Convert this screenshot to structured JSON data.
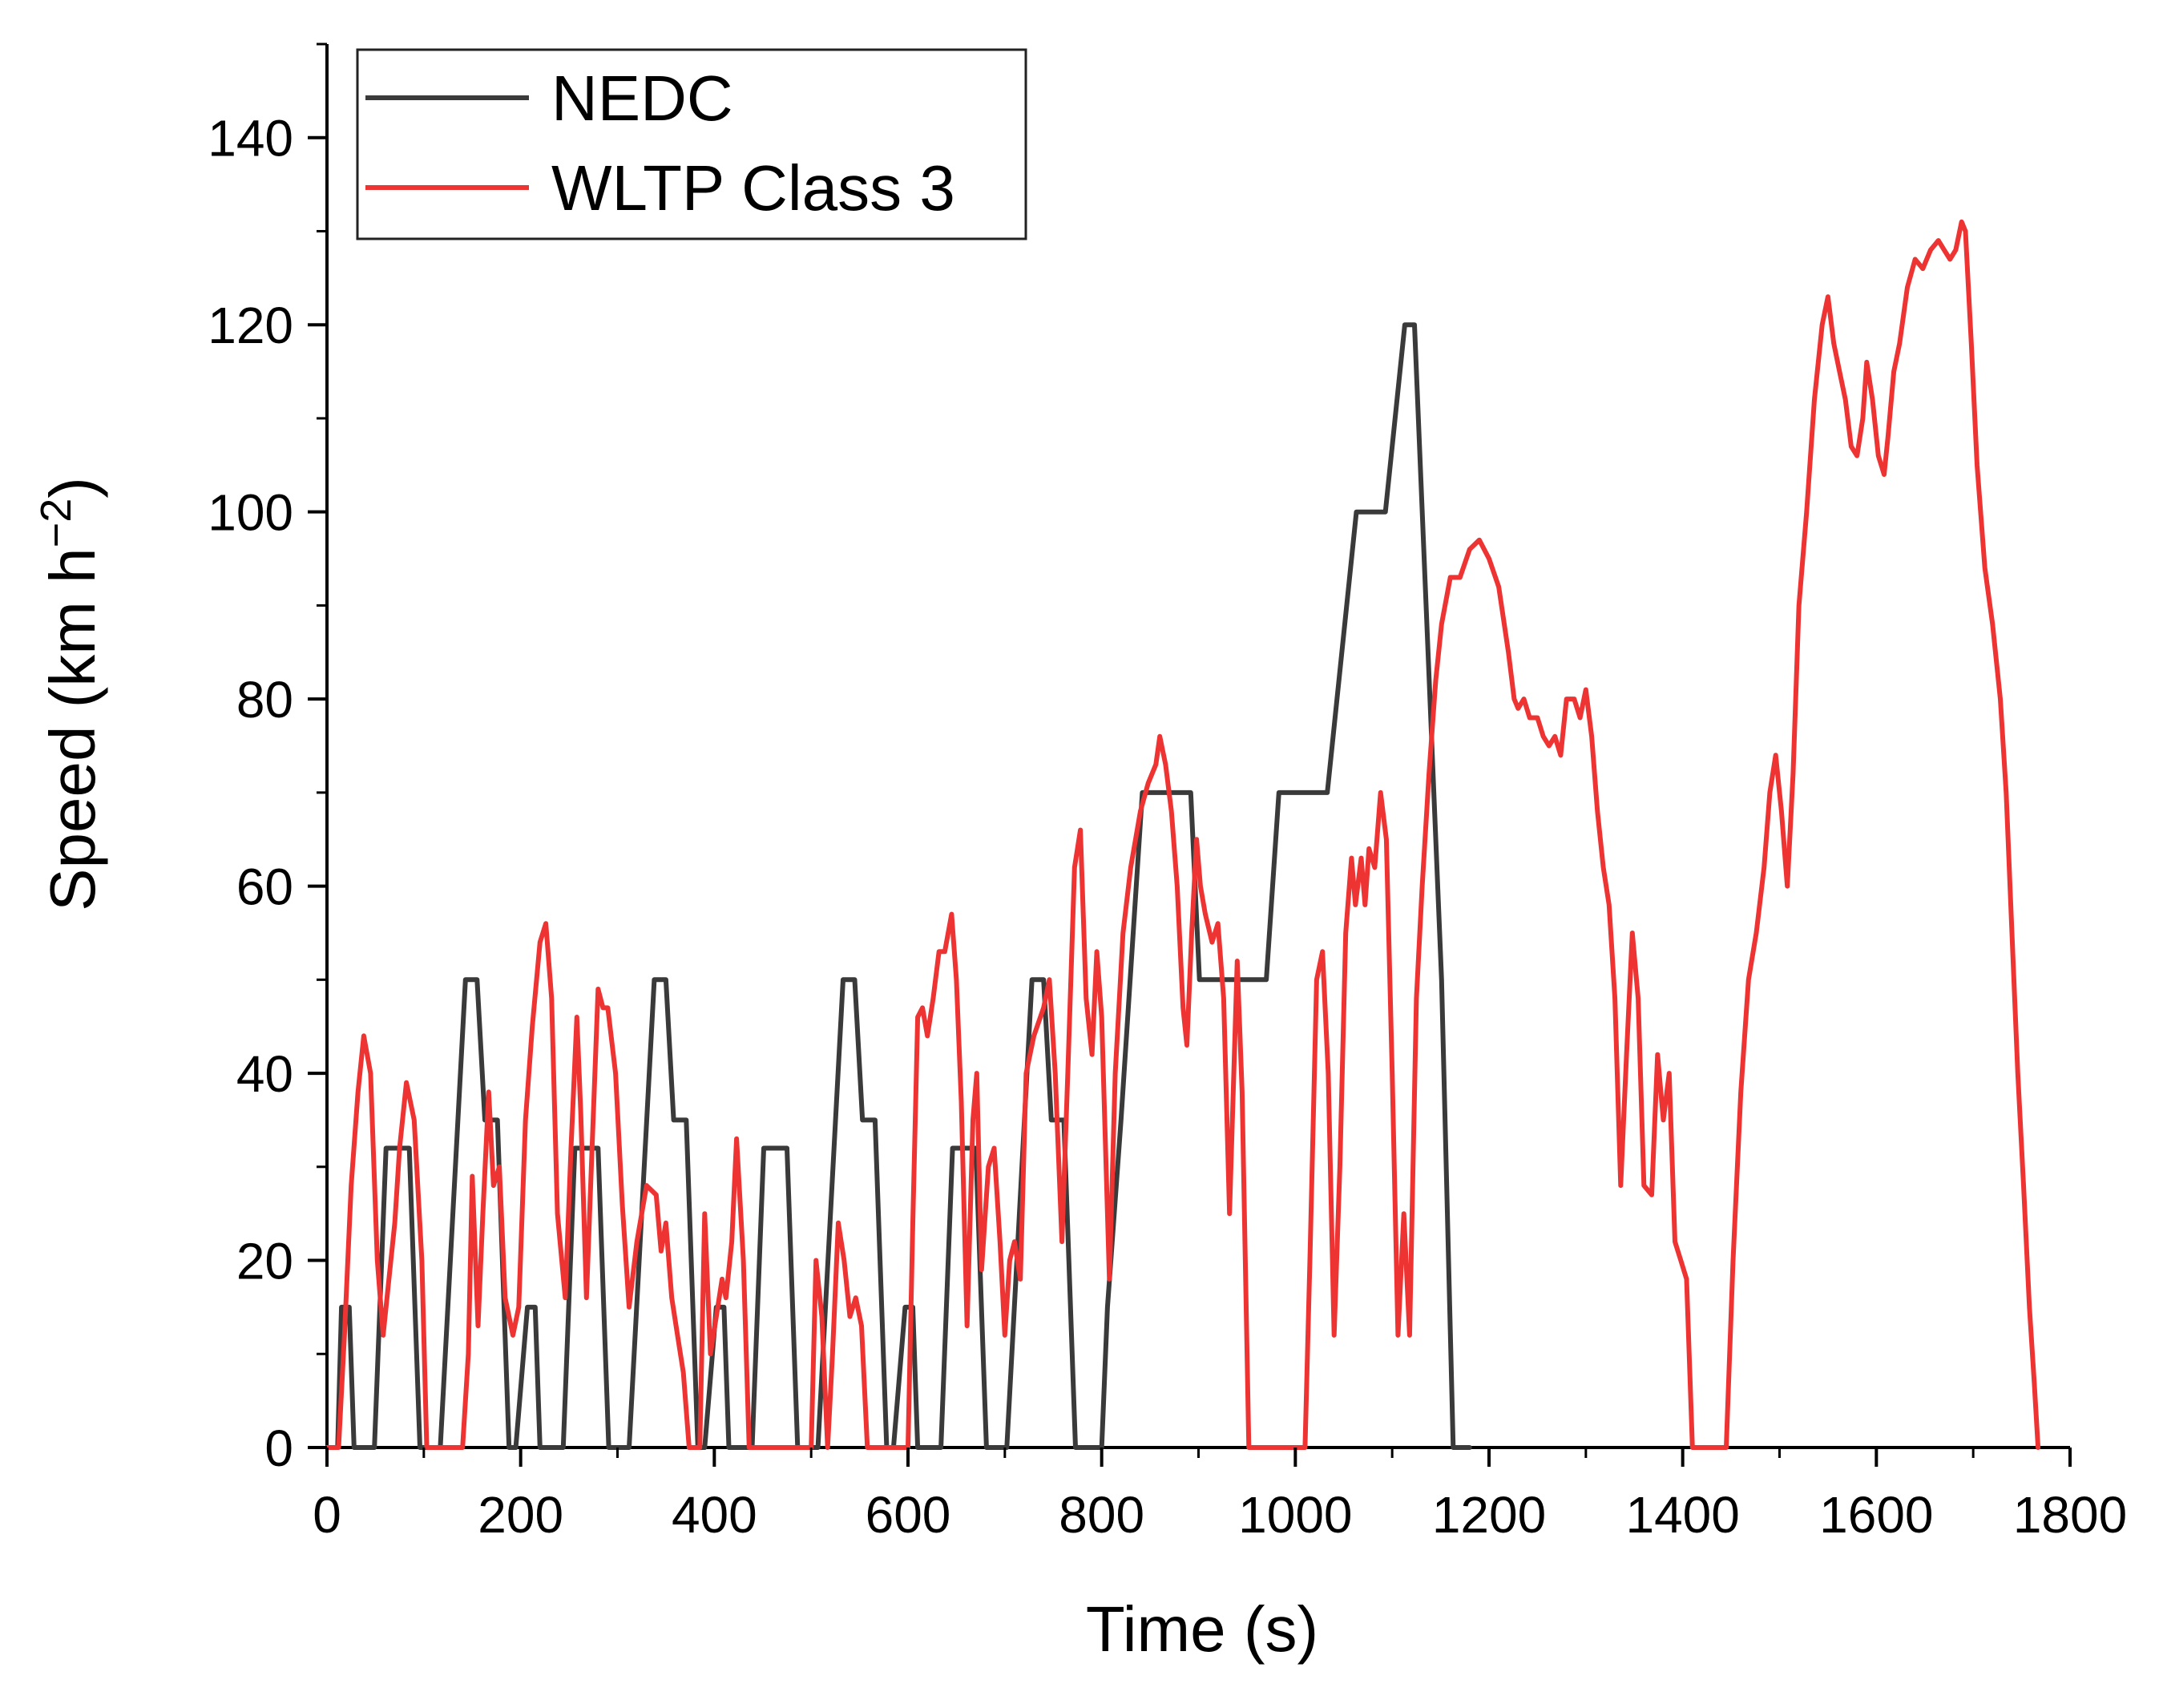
{
  "chart_data": {
    "type": "line",
    "title": "",
    "xlabel": "Time (s)",
    "ylabel_main": "Speed (km h",
    "ylabel_sup": "−2",
    "ylabel_close": ")",
    "xlim": [
      0,
      1800
    ],
    "ylim": [
      0,
      150
    ],
    "x_ticks": [
      0,
      200,
      400,
      600,
      800,
      1000,
      1200,
      1400,
      1600,
      1800
    ],
    "x_tick_labels": [
      "0",
      "200",
      "400",
      "600",
      "800",
      "1000",
      "1200",
      "1400",
      "1600",
      "1800"
    ],
    "y_ticks": [
      0,
      20,
      40,
      60,
      80,
      100,
      120,
      140
    ],
    "y_tick_labels": [
      "0",
      "20",
      "40",
      "60",
      "80",
      "100",
      "120",
      "140"
    ],
    "legend_position": "top-left",
    "grid": false,
    "series": [
      {
        "name": "NEDC",
        "color": "#3a3a3a",
        "points": [
          [
            0,
            0
          ],
          [
            11,
            0
          ],
          [
            15,
            15
          ],
          [
            23,
            15
          ],
          [
            28,
            0
          ],
          [
            49,
            0
          ],
          [
            61,
            32
          ],
          [
            85,
            32
          ],
          [
            96,
            0
          ],
          [
            117,
            0
          ],
          [
            143,
            50
          ],
          [
            155,
            50
          ],
          [
            163,
            35
          ],
          [
            176,
            35
          ],
          [
            188,
            0
          ],
          [
            195,
            0
          ],
          [
            207,
            15
          ],
          [
            215,
            15
          ],
          [
            220,
            0
          ],
          [
            244,
            0
          ],
          [
            256,
            32
          ],
          [
            280,
            32
          ],
          [
            291,
            0
          ],
          [
            312,
            0
          ],
          [
            338,
            50
          ],
          [
            350,
            50
          ],
          [
            358,
            35
          ],
          [
            371,
            35
          ],
          [
            383,
            0
          ],
          [
            390,
            0
          ],
          [
            402,
            15
          ],
          [
            410,
            15
          ],
          [
            415,
            0
          ],
          [
            439,
            0
          ],
          [
            451,
            32
          ],
          [
            475,
            32
          ],
          [
            486,
            0
          ],
          [
            507,
            0
          ],
          [
            533,
            50
          ],
          [
            545,
            50
          ],
          [
            553,
            35
          ],
          [
            566,
            35
          ],
          [
            578,
            0
          ],
          [
            585,
            0
          ],
          [
            597,
            15
          ],
          [
            605,
            15
          ],
          [
            610,
            0
          ],
          [
            634,
            0
          ],
          [
            646,
            32
          ],
          [
            670,
            32
          ],
          [
            681,
            0
          ],
          [
            702,
            0
          ],
          [
            728,
            50
          ],
          [
            740,
            50
          ],
          [
            748,
            35
          ],
          [
            761,
            35
          ],
          [
            773,
            0
          ],
          [
            800,
            0
          ],
          [
            806,
            15
          ],
          [
            820,
            35
          ],
          [
            842,
            70
          ],
          [
            892,
            70
          ],
          [
            901,
            50
          ],
          [
            970,
            50
          ],
          [
            983,
            70
          ],
          [
            1033,
            70
          ],
          [
            1063,
            100
          ],
          [
            1093,
            100
          ],
          [
            1113,
            120
          ],
          [
            1123,
            120
          ],
          [
            1151,
            50
          ],
          [
            1163,
            0
          ],
          [
            1180,
            0
          ]
        ]
      },
      {
        "name": "WLTP Class 3",
        "color": "#ee3333",
        "points": [
          [
            0,
            0
          ],
          [
            12,
            0
          ],
          [
            18,
            12
          ],
          [
            25,
            28
          ],
          [
            32,
            38
          ],
          [
            38,
            44
          ],
          [
            45,
            40
          ],
          [
            52,
            20
          ],
          [
            58,
            12
          ],
          [
            63,
            17
          ],
          [
            70,
            24
          ],
          [
            75,
            32
          ],
          [
            82,
            39
          ],
          [
            90,
            35
          ],
          [
            98,
            20
          ],
          [
            103,
            0
          ],
          [
            140,
            0
          ],
          [
            146,
            10
          ],
          [
            150,
            29
          ],
          [
            156,
            13
          ],
          [
            161,
            25
          ],
          [
            167,
            38
          ],
          [
            172,
            28
          ],
          [
            178,
            30
          ],
          [
            184,
            16
          ],
          [
            192,
            12
          ],
          [
            198,
            15
          ],
          [
            205,
            35
          ],
          [
            212,
            45
          ],
          [
            220,
            54
          ],
          [
            226,
            56
          ],
          [
            232,
            48
          ],
          [
            238,
            25
          ],
          [
            246,
            16
          ],
          [
            252,
            32
          ],
          [
            258,
            46
          ],
          [
            262,
            36
          ],
          [
            268,
            16
          ],
          [
            273,
            30
          ],
          [
            280,
            49
          ],
          [
            285,
            47
          ],
          [
            290,
            47
          ],
          [
            298,
            40
          ],
          [
            305,
            26
          ],
          [
            312,
            15
          ],
          [
            320,
            22
          ],
          [
            330,
            28
          ],
          [
            340,
            27
          ],
          [
            345,
            21
          ],
          [
            350,
            24
          ],
          [
            356,
            16
          ],
          [
            362,
            12
          ],
          [
            368,
            8
          ],
          [
            374,
            0
          ],
          [
            385,
            0
          ],
          [
            390,
            25
          ],
          [
            396,
            10
          ],
          [
            402,
            14
          ],
          [
            408,
            18
          ],
          [
            412,
            16
          ],
          [
            418,
            22
          ],
          [
            423,
            33
          ],
          [
            430,
            20
          ],
          [
            436,
            0
          ],
          [
            500,
            0
          ],
          [
            505,
            20
          ],
          [
            511,
            14
          ],
          [
            517,
            0
          ],
          [
            522,
            10
          ],
          [
            528,
            24
          ],
          [
            534,
            20
          ],
          [
            540,
            14
          ],
          [
            546,
            16
          ],
          [
            552,
            13
          ],
          [
            558,
            0
          ],
          [
            600,
            0
          ],
          [
            605,
            24
          ],
          [
            610,
            46
          ],
          [
            615,
            47
          ],
          [
            620,
            44
          ],
          [
            626,
            48
          ],
          [
            632,
            53
          ],
          [
            638,
            53
          ],
          [
            645,
            57
          ],
          [
            650,
            50
          ],
          [
            655,
            37
          ],
          [
            661,
            13
          ],
          [
            667,
            35
          ],
          [
            671,
            40
          ],
          [
            676,
            19
          ],
          [
            683,
            30
          ],
          [
            689,
            32
          ],
          [
            695,
            22
          ],
          [
            700,
            12
          ],
          [
            705,
            20
          ],
          [
            710,
            22
          ],
          [
            716,
            18
          ],
          [
            722,
            40
          ],
          [
            730,
            44
          ],
          [
            740,
            47
          ],
          [
            746,
            50
          ],
          [
            752,
            40
          ],
          [
            759,
            22
          ],
          [
            765,
            40
          ],
          [
            772,
            62
          ],
          [
            778,
            66
          ],
          [
            784,
            48
          ],
          [
            790,
            42
          ],
          [
            795,
            53
          ],
          [
            800,
            46
          ],
          [
            808,
            18
          ],
          [
            814,
            40
          ],
          [
            822,
            55
          ],
          [
            830,
            62
          ],
          [
            840,
            68
          ],
          [
            848,
            71
          ],
          [
            856,
            73
          ],
          [
            860,
            76
          ],
          [
            866,
            73
          ],
          [
            872,
            68
          ],
          [
            878,
            60
          ],
          [
            884,
            47
          ],
          [
            888,
            43
          ],
          [
            893,
            55
          ],
          [
            898,
            65
          ],
          [
            902,
            60
          ],
          [
            907,
            57
          ],
          [
            914,
            54
          ],
          [
            920,
            56
          ],
          [
            926,
            48
          ],
          [
            932,
            25
          ],
          [
            940,
            52
          ],
          [
            945,
            38
          ],
          [
            952,
            0
          ],
          [
            1010,
            0
          ],
          [
            1015,
            20
          ],
          [
            1022,
            50
          ],
          [
            1028,
            53
          ],
          [
            1034,
            40
          ],
          [
            1040,
            12
          ],
          [
            1046,
            30
          ],
          [
            1052,
            55
          ],
          [
            1058,
            63
          ],
          [
            1062,
            58
          ],
          [
            1068,
            63
          ],
          [
            1072,
            58
          ],
          [
            1076,
            64
          ],
          [
            1082,
            62
          ],
          [
            1088,
            70
          ],
          [
            1094,
            65
          ],
          [
            1100,
            40
          ],
          [
            1106,
            12
          ],
          [
            1112,
            25
          ],
          [
            1118,
            12
          ],
          [
            1125,
            48
          ],
          [
            1131,
            60
          ],
          [
            1138,
            72
          ],
          [
            1145,
            82
          ],
          [
            1151,
            88
          ],
          [
            1160,
            93
          ],
          [
            1170,
            93
          ],
          [
            1180,
            96
          ],
          [
            1190,
            97
          ],
          [
            1200,
            95
          ],
          [
            1210,
            92
          ],
          [
            1220,
            85
          ],
          [
            1226,
            80
          ],
          [
            1230,
            79
          ],
          [
            1236,
            80
          ],
          [
            1242,
            78
          ],
          [
            1250,
            78
          ],
          [
            1256,
            76
          ],
          [
            1262,
            75
          ],
          [
            1268,
            76
          ],
          [
            1274,
            74
          ],
          [
            1280,
            80
          ],
          [
            1288,
            80
          ],
          [
            1294,
            78
          ],
          [
            1300,
            81
          ],
          [
            1306,
            76
          ],
          [
            1312,
            68
          ],
          [
            1318,
            62
          ],
          [
            1324,
            58
          ],
          [
            1330,
            48
          ],
          [
            1336,
            28
          ],
          [
            1342,
            42
          ],
          [
            1348,
            55
          ],
          [
            1354,
            48
          ],
          [
            1360,
            28
          ],
          [
            1368,
            27
          ],
          [
            1374,
            42
          ],
          [
            1380,
            35
          ],
          [
            1386,
            40
          ],
          [
            1392,
            22
          ],
          [
            1398,
            20
          ],
          [
            1404,
            18
          ],
          [
            1410,
            0
          ],
          [
            1445,
            0
          ],
          [
            1452,
            20
          ],
          [
            1460,
            38
          ],
          [
            1468,
            50
          ],
          [
            1476,
            55
          ],
          [
            1484,
            62
          ],
          [
            1490,
            70
          ],
          [
            1496,
            74
          ],
          [
            1502,
            68
          ],
          [
            1508,
            60
          ],
          [
            1514,
            72
          ],
          [
            1520,
            90
          ],
          [
            1528,
            100
          ],
          [
            1536,
            112
          ],
          [
            1544,
            120
          ],
          [
            1550,
            123
          ],
          [
            1556,
            118
          ],
          [
            1562,
            115
          ],
          [
            1568,
            112
          ],
          [
            1574,
            107
          ],
          [
            1580,
            106
          ],
          [
            1586,
            110
          ],
          [
            1590,
            116
          ],
          [
            1596,
            112
          ],
          [
            1602,
            106
          ],
          [
            1608,
            104
          ],
          [
            1612,
            108
          ],
          [
            1618,
            115
          ],
          [
            1624,
            118
          ],
          [
            1632,
            124
          ],
          [
            1640,
            127
          ],
          [
            1648,
            126
          ],
          [
            1656,
            128
          ],
          [
            1664,
            129
          ],
          [
            1670,
            128
          ],
          [
            1676,
            127
          ],
          [
            1682,
            128
          ],
          [
            1688,
            131
          ],
          [
            1692,
            130
          ],
          [
            1698,
            118
          ],
          [
            1704,
            105
          ],
          [
            1712,
            94
          ],
          [
            1720,
            88
          ],
          [
            1728,
            80
          ],
          [
            1734,
            70
          ],
          [
            1740,
            55
          ],
          [
            1746,
            40
          ],
          [
            1752,
            28
          ],
          [
            1758,
            15
          ],
          [
            1763,
            7
          ],
          [
            1767,
            0
          ]
        ]
      }
    ]
  }
}
